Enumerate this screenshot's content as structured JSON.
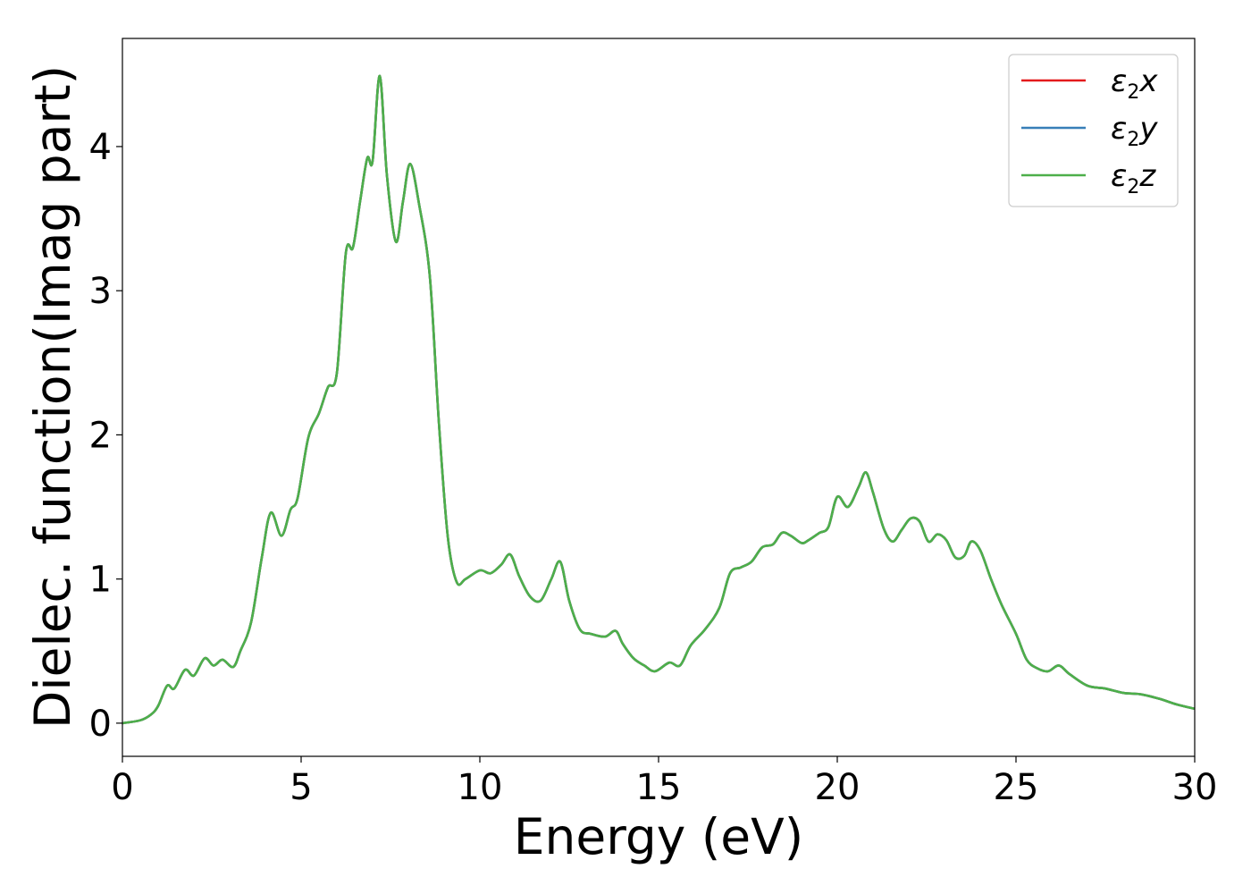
{
  "chart_data": {
    "type": "line",
    "xlabel": "Energy (eV)",
    "ylabel": "Dielec. function(Imag part)",
    "xlim": [
      0,
      30
    ],
    "ylim": [
      -0.23,
      4.75
    ],
    "xticks": [
      0,
      5,
      10,
      15,
      20,
      25,
      30
    ],
    "yticks": [
      0,
      1,
      2,
      3,
      4
    ],
    "grid": false,
    "legend_position": "top-right",
    "colors": {
      "x": "#e41a1c",
      "y": "#377eb8",
      "z": "#4daf4a"
    },
    "legend": [
      {
        "symbol": "ε",
        "sub": "2",
        "axis": "x",
        "color": "#e41a1c"
      },
      {
        "symbol": "ε",
        "sub": "2",
        "axis": "y",
        "color": "#377eb8"
      },
      {
        "symbol": "ε",
        "sub": "2",
        "axis": "z",
        "color": "#4daf4a"
      }
    ],
    "x": [
      0,
      0.5,
      0.8,
      1.0,
      1.25,
      1.45,
      1.75,
      2.0,
      2.3,
      2.55,
      2.8,
      3.1,
      3.3,
      3.6,
      3.9,
      4.15,
      4.45,
      4.7,
      4.9,
      5.2,
      5.5,
      5.75,
      6.0,
      6.25,
      6.45,
      6.65,
      6.85,
      7.0,
      7.2,
      7.4,
      7.65,
      7.85,
      8.05,
      8.3,
      8.6,
      8.85,
      9.1,
      9.35,
      9.6,
      10.0,
      10.3,
      10.6,
      10.85,
      11.1,
      11.4,
      11.7,
      12.0,
      12.25,
      12.5,
      12.8,
      13.1,
      13.5,
      13.8,
      14.0,
      14.3,
      14.6,
      14.9,
      15.3,
      15.6,
      15.9,
      16.3,
      16.7,
      17.0,
      17.3,
      17.6,
      17.9,
      18.2,
      18.45,
      18.7,
      19.0,
      19.2,
      19.5,
      19.75,
      20.0,
      20.3,
      20.6,
      20.8,
      21.0,
      21.3,
      21.55,
      21.8,
      22.05,
      22.3,
      22.55,
      22.8,
      23.05,
      23.3,
      23.55,
      23.75,
      24.0,
      24.3,
      24.6,
      25.0,
      25.3,
      25.6,
      25.9,
      26.2,
      26.5,
      27.0,
      27.5,
      28.0,
      28.5,
      29.0,
      29.5,
      30.0
    ],
    "series": [
      {
        "name": "ε2x",
        "color": "#e41a1c",
        "values": [
          0.0,
          0.02,
          0.06,
          0.12,
          0.26,
          0.24,
          0.37,
          0.33,
          0.45,
          0.4,
          0.44,
          0.39,
          0.5,
          0.7,
          1.15,
          1.46,
          1.3,
          1.48,
          1.56,
          1.98,
          2.15,
          2.33,
          2.43,
          3.26,
          3.3,
          3.62,
          3.92,
          3.9,
          4.49,
          3.8,
          3.34,
          3.62,
          3.88,
          3.6,
          3.1,
          2.1,
          1.3,
          0.98,
          1.0,
          1.06,
          1.04,
          1.1,
          1.17,
          1.02,
          0.88,
          0.85,
          1.0,
          1.12,
          0.85,
          0.65,
          0.62,
          0.6,
          0.64,
          0.55,
          0.45,
          0.4,
          0.36,
          0.42,
          0.4,
          0.54,
          0.65,
          0.8,
          1.04,
          1.08,
          1.12,
          1.22,
          1.24,
          1.32,
          1.3,
          1.25,
          1.27,
          1.32,
          1.36,
          1.57,
          1.5,
          1.64,
          1.74,
          1.6,
          1.35,
          1.26,
          1.34,
          1.42,
          1.4,
          1.26,
          1.31,
          1.27,
          1.15,
          1.16,
          1.26,
          1.2,
          1.0,
          0.82,
          0.62,
          0.44,
          0.38,
          0.36,
          0.4,
          0.34,
          0.26,
          0.24,
          0.21,
          0.2,
          0.17,
          0.13,
          0.1
        ]
      },
      {
        "name": "ε2y",
        "color": "#377eb8",
        "values": [
          0.0,
          0.02,
          0.06,
          0.12,
          0.26,
          0.24,
          0.37,
          0.33,
          0.45,
          0.4,
          0.44,
          0.39,
          0.5,
          0.7,
          1.15,
          1.46,
          1.3,
          1.48,
          1.56,
          1.98,
          2.15,
          2.33,
          2.43,
          3.26,
          3.3,
          3.62,
          3.92,
          3.9,
          4.49,
          3.8,
          3.34,
          3.62,
          3.88,
          3.6,
          3.1,
          2.1,
          1.3,
          0.98,
          1.0,
          1.06,
          1.04,
          1.1,
          1.17,
          1.02,
          0.88,
          0.85,
          1.0,
          1.12,
          0.85,
          0.65,
          0.62,
          0.6,
          0.64,
          0.55,
          0.45,
          0.4,
          0.36,
          0.42,
          0.4,
          0.54,
          0.65,
          0.8,
          1.04,
          1.08,
          1.12,
          1.22,
          1.24,
          1.32,
          1.3,
          1.25,
          1.27,
          1.32,
          1.36,
          1.57,
          1.5,
          1.64,
          1.74,
          1.6,
          1.35,
          1.26,
          1.34,
          1.42,
          1.4,
          1.26,
          1.31,
          1.27,
          1.15,
          1.16,
          1.26,
          1.2,
          1.0,
          0.82,
          0.62,
          0.44,
          0.38,
          0.36,
          0.4,
          0.34,
          0.26,
          0.24,
          0.21,
          0.2,
          0.17,
          0.13,
          0.1
        ]
      },
      {
        "name": "ε2z",
        "color": "#4daf4a",
        "values": [
          0.0,
          0.02,
          0.06,
          0.12,
          0.26,
          0.24,
          0.37,
          0.33,
          0.45,
          0.4,
          0.44,
          0.39,
          0.5,
          0.7,
          1.15,
          1.46,
          1.3,
          1.48,
          1.56,
          1.98,
          2.15,
          2.33,
          2.43,
          3.26,
          3.3,
          3.62,
          3.92,
          3.9,
          4.49,
          3.8,
          3.34,
          3.62,
          3.88,
          3.6,
          3.1,
          2.1,
          1.3,
          0.98,
          1.0,
          1.06,
          1.04,
          1.1,
          1.17,
          1.02,
          0.88,
          0.85,
          1.0,
          1.12,
          0.85,
          0.65,
          0.62,
          0.6,
          0.64,
          0.55,
          0.45,
          0.4,
          0.36,
          0.42,
          0.4,
          0.54,
          0.65,
          0.8,
          1.04,
          1.08,
          1.12,
          1.22,
          1.24,
          1.32,
          1.3,
          1.25,
          1.27,
          1.32,
          1.36,
          1.57,
          1.5,
          1.64,
          1.74,
          1.6,
          1.35,
          1.26,
          1.34,
          1.42,
          1.4,
          1.26,
          1.31,
          1.27,
          1.15,
          1.16,
          1.26,
          1.2,
          1.0,
          0.82,
          0.62,
          0.44,
          0.38,
          0.36,
          0.4,
          0.34,
          0.26,
          0.24,
          0.21,
          0.2,
          0.17,
          0.13,
          0.1
        ]
      }
    ]
  }
}
